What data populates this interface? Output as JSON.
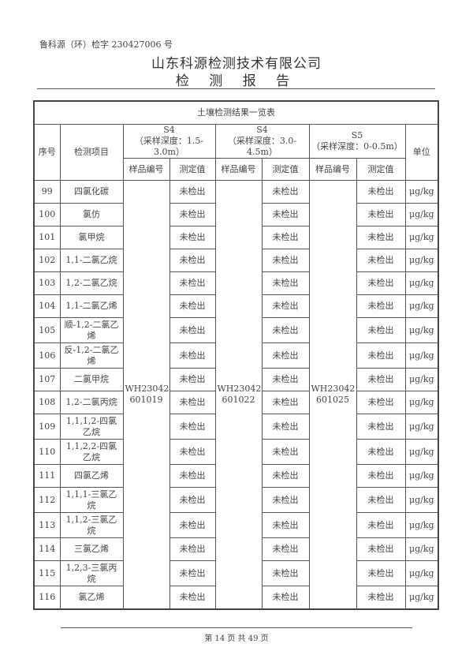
{
  "header": {
    "ref": "鲁科源（环）检字 230427006 号",
    "company": "山东科源检测技术有限公司",
    "report_title": "检 测 报 告"
  },
  "table": {
    "title": "土壤检测结果一览表",
    "col_seq": "序号",
    "col_item": "检测项目",
    "col_unit": "单位",
    "groups": [
      {
        "site": "S4",
        "depth": "（采样深度：1.5-3.0m）",
        "sample_label": "样品编号",
        "value_label": "测定值",
        "sample_id": "WH23042\n601019"
      },
      {
        "site": "S4",
        "depth": "（采样深度：3.0-4.5m）",
        "sample_label": "样品编号",
        "value_label": "测定值",
        "sample_id": "WH23042\n601022"
      },
      {
        "site": "S5",
        "depth": "（采样深度：0-0.5m）",
        "sample_label": "样品编号",
        "value_label": "测定值",
        "sample_id": "WH23042\n601025"
      }
    ],
    "rows": [
      {
        "no": "99",
        "item": "四氯化碳",
        "v1": "未检出",
        "v2": "未检出",
        "v3": "未检出",
        "unit": "μg/kg"
      },
      {
        "no": "100",
        "item": "氯仿",
        "v1": "未检出",
        "v2": "未检出",
        "v3": "未检出",
        "unit": "μg/kg"
      },
      {
        "no": "101",
        "item": "氯甲烷",
        "v1": "未检出",
        "v2": "未检出",
        "v3": "未检出",
        "unit": "μg/kg"
      },
      {
        "no": "102",
        "item": "1,1-二氯乙烷",
        "v1": "未检出",
        "v2": "未检出",
        "v3": "未检出",
        "unit": "μg/kg"
      },
      {
        "no": "103",
        "item": "1,2-二氯乙烷",
        "v1": "未检出",
        "v2": "未检出",
        "v3": "未检出",
        "unit": "μg/kg"
      },
      {
        "no": "104",
        "item": "1,1-二氯乙烯",
        "v1": "未检出",
        "v2": "未检出",
        "v3": "未检出",
        "unit": "μg/kg"
      },
      {
        "no": "105",
        "item": "顺-1,2-二氯乙烯",
        "v1": "未检出",
        "v2": "未检出",
        "v3": "未检出",
        "unit": "μg/kg"
      },
      {
        "no": "106",
        "item": "反-1,2-二氯乙烯",
        "v1": "未检出",
        "v2": "未检出",
        "v3": "未检出",
        "unit": "μg/kg"
      },
      {
        "no": "107",
        "item": "二氯甲烷",
        "v1": "未检出",
        "v2": "未检出",
        "v3": "未检出",
        "unit": "μg/kg"
      },
      {
        "no": "108",
        "item": "1,2-二氯丙烷",
        "v1": "未检出",
        "v2": "未检出",
        "v3": "未检出",
        "unit": "μg/kg"
      },
      {
        "no": "109",
        "item": "1,1,1,2-四氯乙烷",
        "v1": "未检出",
        "v2": "未检出",
        "v3": "未检出",
        "unit": "μg/kg"
      },
      {
        "no": "110",
        "item": "1,1,2,2-四氯乙烷",
        "v1": "未检出",
        "v2": "未检出",
        "v3": "未检出",
        "unit": "μg/kg"
      },
      {
        "no": "111",
        "item": "四氯乙烯",
        "v1": "未检出",
        "v2": "未检出",
        "v3": "未检出",
        "unit": "μg/kg"
      },
      {
        "no": "112",
        "item": "1,1,1-三氯乙烷",
        "v1": "未检出",
        "v2": "未检出",
        "v3": "未检出",
        "unit": "μg/kg"
      },
      {
        "no": "113",
        "item": "1,1,2-三氯乙烷",
        "v1": "未检出",
        "v2": "未检出",
        "v3": "未检出",
        "unit": "μg/kg"
      },
      {
        "no": "114",
        "item": "三氯乙烯",
        "v1": "未检出",
        "v2": "未检出",
        "v3": "未检出",
        "unit": "μg/kg"
      },
      {
        "no": "115",
        "item": "1,2,3-三氯丙烷",
        "v1": "未检出",
        "v2": "未检出",
        "v3": "未检出",
        "unit": "μg/kg"
      },
      {
        "no": "116",
        "item": "氯乙烯",
        "v1": "未检出",
        "v2": "未检出",
        "v3": "未检出",
        "unit": "μg/kg"
      }
    ]
  },
  "footer": {
    "page": "第 14 页 共 49 页"
  }
}
